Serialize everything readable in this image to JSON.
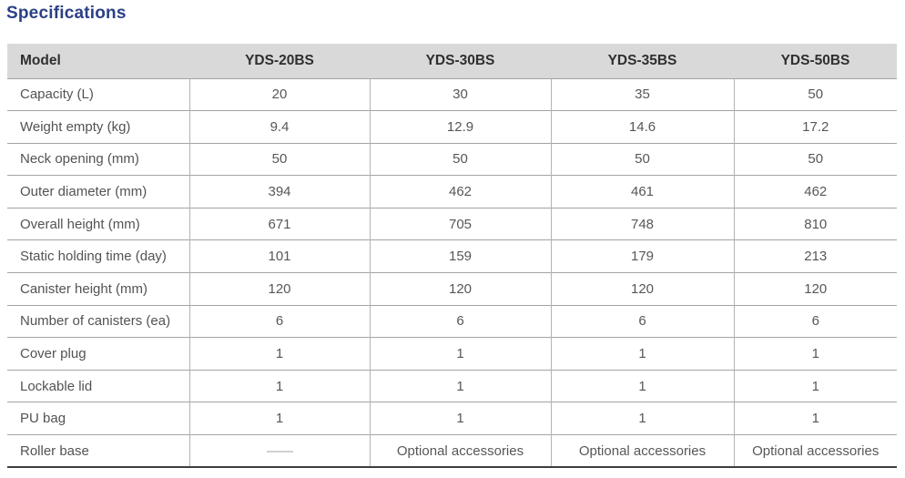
{
  "page": {
    "title": "Specifications"
  },
  "colors": {
    "title_accent": "#2b4086",
    "header_background": "#d9d9d9",
    "body_text": "#565758",
    "table_bottom_border": "#3e3e3e"
  },
  "table": {
    "columns": [
      "Model",
      "YDS-20BS",
      "YDS-30BS",
      "YDS-35BS",
      "YDS-50BS"
    ],
    "rows": [
      {
        "label": "Capacity (L)",
        "values": [
          "20",
          "30",
          "35",
          "50"
        ]
      },
      {
        "label": "Weight empty (kg)",
        "values": [
          "9.4",
          "12.9",
          "14.6",
          "17.2"
        ]
      },
      {
        "label": "Neck opening (mm)",
        "values": [
          "50",
          "50",
          "50",
          "50"
        ]
      },
      {
        "label": "Outer diameter (mm)",
        "values": [
          "394",
          "462",
          "461",
          "462"
        ]
      },
      {
        "label": "Overall height (mm)",
        "values": [
          "671",
          "705",
          "748",
          "810"
        ]
      },
      {
        "label": "Static holding time (day)",
        "values": [
          "101",
          "159",
          "179",
          "213"
        ]
      },
      {
        "label": "Canister height (mm)",
        "values": [
          "120",
          "120",
          "120",
          "120"
        ]
      },
      {
        "label": "Number of canisters (ea)",
        "values": [
          "6",
          "6",
          "6",
          "6"
        ]
      },
      {
        "label": "Cover plug",
        "values": [
          "1",
          "1",
          "1",
          "1"
        ]
      },
      {
        "label": "Lockable lid",
        "values": [
          "1",
          "1",
          "1",
          "1"
        ]
      },
      {
        "label": "PU bag",
        "values": [
          "1",
          "1",
          "1",
          "1"
        ]
      },
      {
        "label": "Roller base",
        "values": [
          "——",
          "Optional accessories",
          "Optional accessories",
          "Optional accessories"
        ]
      }
    ]
  }
}
